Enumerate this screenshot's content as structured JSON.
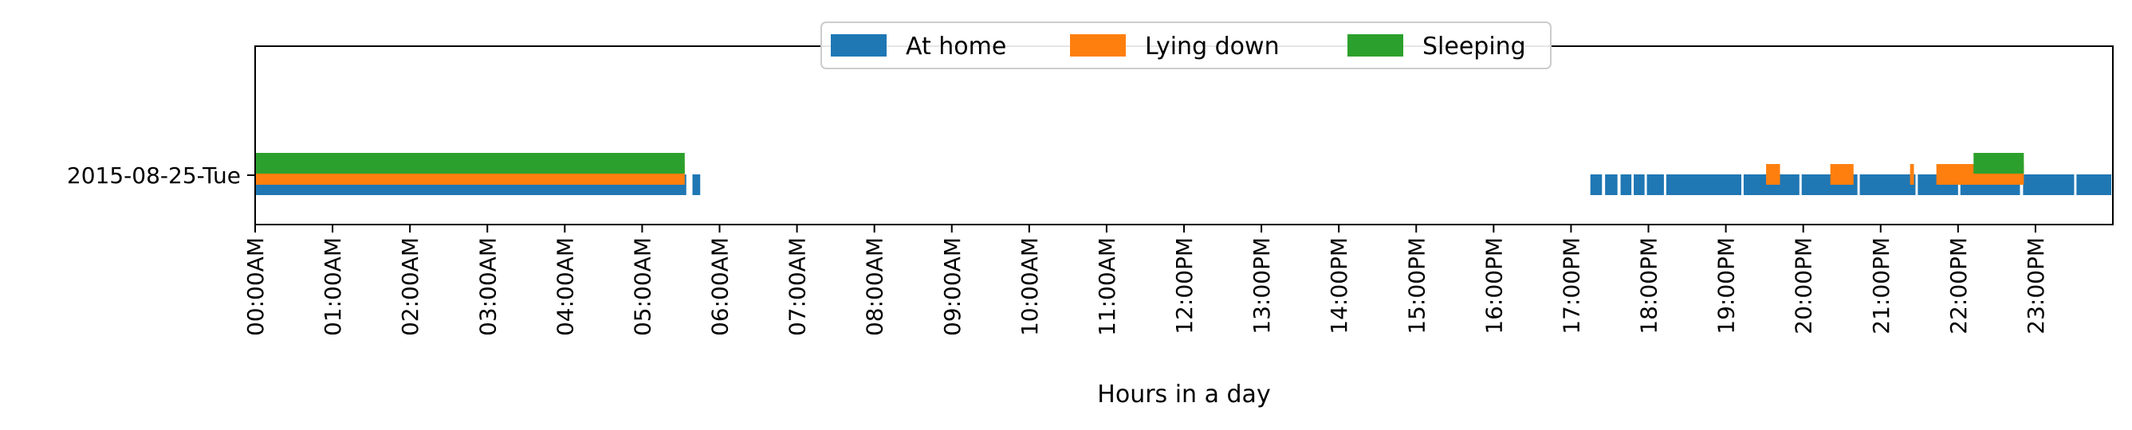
{
  "chart_data": {
    "type": "timeline",
    "xlabel": "Hours in a day",
    "ylabel": "",
    "xlim": [
      0,
      24
    ],
    "grid": false,
    "legend": {
      "placement": "top-center"
    },
    "categories": [
      "2015-08-25-Tue"
    ],
    "xticks": [
      "00:00AM",
      "01:00AM",
      "02:00AM",
      "03:00AM",
      "04:00AM",
      "05:00AM",
      "06:00AM",
      "07:00AM",
      "08:00AM",
      "09:00AM",
      "10:00AM",
      "11:00AM",
      "12:00PM",
      "13:00PM",
      "14:00PM",
      "15:00PM",
      "16:00PM",
      "17:00PM",
      "18:00PM",
      "19:00PM",
      "20:00PM",
      "21:00PM",
      "22:00PM",
      "23:00PM"
    ],
    "series": [
      {
        "name": "At home",
        "color": "#1f77b4",
        "intervals": [
          [
            0.0,
            5.57
          ],
          [
            5.65,
            5.75
          ],
          [
            17.25,
            17.4
          ],
          [
            17.44,
            17.6
          ],
          [
            17.64,
            17.78
          ],
          [
            17.81,
            17.95
          ],
          [
            17.98,
            18.2
          ],
          [
            18.23,
            19.2
          ],
          [
            19.23,
            19.95
          ],
          [
            19.98,
            20.7
          ],
          [
            20.73,
            21.45
          ],
          [
            21.48,
            22.0
          ],
          [
            22.03,
            22.8
          ],
          [
            22.84,
            23.5
          ],
          [
            23.53,
            23.98
          ]
        ]
      },
      {
        "name": "Lying down",
        "color": "#ff7f0e",
        "intervals": [
          [
            0.0,
            5.55
          ],
          [
            19.52,
            19.7
          ],
          [
            20.35,
            20.65
          ],
          [
            21.38,
            21.43
          ],
          [
            21.72,
            22.85
          ]
        ]
      },
      {
        "name": "Sleeping",
        "color": "#2ca02c",
        "intervals": [
          [
            0.0,
            5.55
          ],
          [
            22.2,
            22.85
          ]
        ]
      }
    ]
  }
}
